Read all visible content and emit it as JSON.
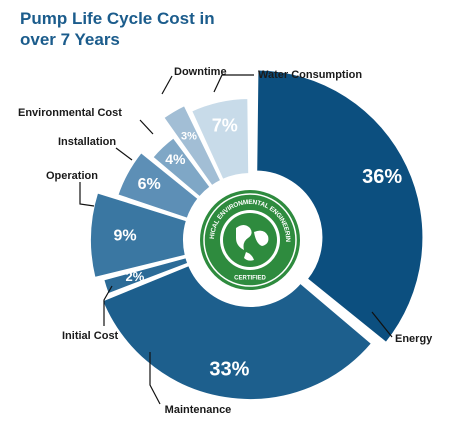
{
  "chart_data": {
    "type": "donut",
    "title": "Pump Life Cycle Cost in over 7 Years",
    "categories": [
      "Energy",
      "Maintenance",
      "Initial Cost",
      "Operation",
      "Installation",
      "Environmental Cost",
      "Downtime",
      "Water Consumption"
    ],
    "values": [
      36,
      33,
      2,
      9,
      6,
      4,
      3,
      7
    ],
    "value_labels": [
      "36%",
      "33%",
      "2%",
      "9%",
      "6%",
      "4%",
      "3%",
      "7%"
    ],
    "colors": [
      "#0c4f7f",
      "#1d5f8d",
      "#2c6b97",
      "#3a77a2",
      "#5d8fb6",
      "#7fa7c6",
      "#a2bed5",
      "#c8dbe9"
    ]
  },
  "logo": {
    "ring_text": "ETHICAL ENVIRONMENTAL ENGINEERING",
    "badge_text": "CERTIFIED"
  }
}
